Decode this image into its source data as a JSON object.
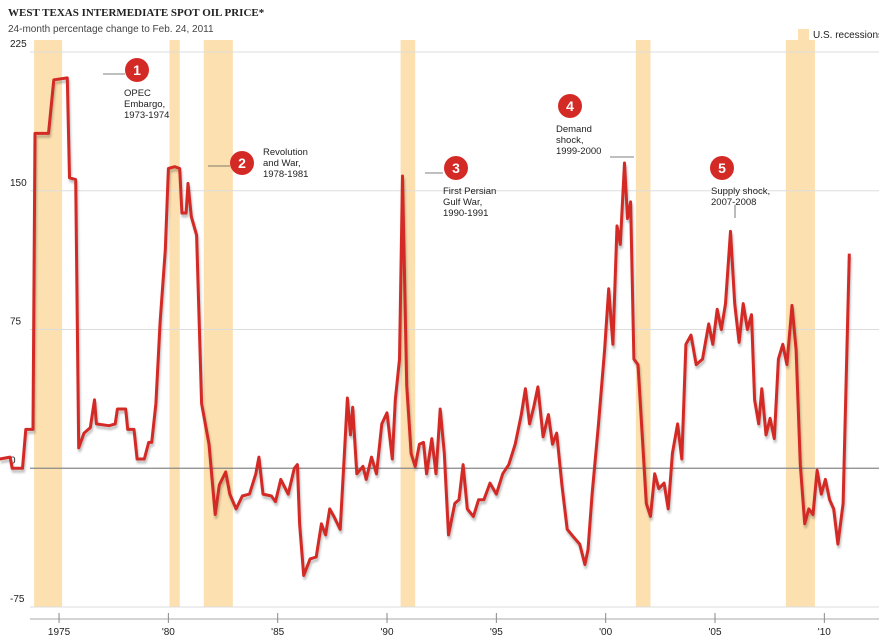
{
  "chart_data": {
    "type": "line",
    "title": "WEST TEXAS INTERMEDIATE SPOT OIL PRICE*",
    "subtitle": "24-month percentage change to Feb. 24, 2011",
    "legend_label": "U.S. recessions",
    "recession_color": "#fde0b0",
    "grid": true,
    "xlim": [
      1972.3,
      2012.5
    ],
    "ylim": [
      -75,
      225
    ],
    "yticks": [
      -75,
      0,
      75,
      150,
      225
    ],
    "xticks": [
      1975,
      {
        "value": 1980,
        "label": "'80"
      },
      {
        "value": 1985,
        "label": "'85"
      },
      {
        "value": 1990,
        "label": "'90"
      },
      {
        "value": 1995,
        "label": "'95"
      },
      {
        "value": 2000,
        "label": "'00"
      },
      {
        "value": 2005,
        "label": "'05"
      },
      {
        "value": 2010,
        "label": "'10"
      }
    ],
    "recessions": [
      [
        1973.86,
        1975.14
      ],
      [
        1980.05,
        1980.52
      ],
      [
        1981.62,
        1982.95
      ],
      [
        1990.62,
        1991.29
      ],
      [
        2001.38,
        2002.05
      ],
      [
        2008.24,
        2009.57
      ]
    ],
    "annotations": [
      {
        "number": "1",
        "lines": [
          "OPEC",
          "Embargo,",
          "1973-1974"
        ]
      },
      {
        "number": "2",
        "lines": [
          "Revolution",
          "and War,",
          "1978-1981"
        ]
      },
      {
        "number": "3",
        "lines": [
          "First Persian",
          "Gulf War,",
          "1990-1991"
        ]
      },
      {
        "number": "4",
        "lines": [
          "Demand",
          "shock,",
          "1999-2000"
        ]
      },
      {
        "number": "5",
        "lines": [
          "Supply shock,",
          "2007-2008"
        ]
      }
    ],
    "series": [
      {
        "color": "#d42a25",
        "x": [
          1972.29,
          1972.76,
          1972.86,
          1973.33,
          1973.48,
          1973.81,
          1973.9,
          1974.52,
          1974.76,
          1975.38,
          1975.48,
          1975.76,
          1975.9,
          1976.14,
          1976.43,
          1976.62,
          1976.71,
          1977.29,
          1977.57,
          1977.67,
          1978.05,
          1978.14,
          1978.43,
          1978.57,
          1978.9,
          1979.1,
          1979.24,
          1979.43,
          1979.62,
          1979.86,
          1980.0,
          1980.29,
          1980.52,
          1980.62,
          1980.81,
          1980.9,
          1981.05,
          1981.29,
          1981.52,
          1981.86,
          1982.14,
          1982.33,
          1982.62,
          1982.81,
          1983.1,
          1983.38,
          1983.71,
          1984.0,
          1984.14,
          1984.33,
          1984.71,
          1984.9,
          1985.14,
          1985.48,
          1985.76,
          1985.9,
          1986.0,
          1986.19,
          1986.48,
          1986.76,
          1987.0,
          1987.19,
          1987.38,
          1987.57,
          1987.86,
          1988.05,
          1988.19,
          1988.33,
          1988.43,
          1988.62,
          1988.9,
          1989.05,
          1989.29,
          1989.52,
          1989.76,
          1990.0,
          1990.24,
          1990.38,
          1990.57,
          1990.71,
          1990.9,
          1991.1,
          1991.29,
          1991.48,
          1991.67,
          1991.81,
          1992.05,
          1992.24,
          1992.43,
          1992.62,
          1992.81,
          1993.1,
          1993.29,
          1993.48,
          1993.67,
          1993.95,
          1994.19,
          1994.43,
          1994.71,
          1995.0,
          1995.29,
          1995.57,
          1995.86,
          1996.14,
          1996.33,
          1996.52,
          1996.71,
          1996.9,
          1997.14,
          1997.38,
          1997.57,
          1997.76,
          1998.0,
          1998.24,
          1998.52,
          1998.81,
          1999.05,
          1999.19,
          1999.38,
          1999.67,
          1999.95,
          2000.14,
          2000.33,
          2000.52,
          2000.67,
          2000.86,
          2001.0,
          2001.14,
          2001.29,
          2001.48,
          2001.67,
          2001.86,
          2002.05,
          2002.24,
          2002.43,
          2002.67,
          2002.86,
          2003.05,
          2003.29,
          2003.48,
          2003.67,
          2003.9,
          2004.14,
          2004.43,
          2004.71,
          2004.9,
          2005.1,
          2005.29,
          2005.48,
          2005.71,
          2005.9,
          2006.1,
          2006.29,
          2006.48,
          2006.67,
          2006.81,
          2007.0,
          2007.14,
          2007.33,
          2007.52,
          2007.71,
          2007.9,
          2008.1,
          2008.29,
          2008.52,
          2008.71,
          2008.9,
          2009.1,
          2009.29,
          2009.48,
          2009.67,
          2009.86,
          2010.05,
          2010.24,
          2010.43,
          2010.62,
          2010.86,
          2011.14
        ],
        "values": [
          5,
          6,
          0,
          0,
          21,
          21,
          181,
          181,
          210,
          211,
          157,
          156,
          11,
          19,
          22,
          37,
          24,
          23,
          24,
          32,
          32,
          21,
          21,
          5,
          5,
          14,
          14,
          35,
          79,
          118,
          162,
          163,
          162,
          138,
          138,
          154,
          136,
          126,
          35,
          13,
          -25,
          -9,
          -2,
          -14,
          -22,
          -15,
          -14,
          -3,
          6,
          -14,
          -15,
          -18,
          -6,
          -14,
          0,
          2,
          -30,
          -58,
          -49,
          -48,
          -30,
          -36,
          -22,
          -26,
          -33,
          8,
          38,
          18,
          33,
          -3,
          1,
          -6,
          6,
          -3,
          24,
          30,
          5,
          37,
          59,
          158,
          45,
          8,
          1,
          13,
          14,
          -3,
          16,
          -3,
          32,
          8,
          -36,
          -19,
          -17,
          2,
          -22,
          -26,
          -17,
          -17,
          -8,
          -14,
          -3,
          2,
          13,
          29,
          43,
          24,
          33,
          44,
          17,
          29,
          13,
          19,
          -9,
          -33,
          -37,
          -41,
          -52,
          -44,
          -14,
          24,
          64,
          97,
          67,
          131,
          121,
          165,
          135,
          144,
          59,
          56,
          18,
          -19,
          -26,
          -3,
          -11,
          -8,
          -22,
          8,
          24,
          5,
          67,
          72,
          56,
          59,
          78,
          67,
          86,
          75,
          89,
          128,
          89,
          68,
          89,
          75,
          83,
          37,
          24,
          43,
          18,
          27,
          16,
          59,
          67,
          56,
          88,
          64,
          2,
          -30,
          -22,
          -25,
          -1,
          -14,
          -6,
          -17,
          -22,
          -41,
          -19,
          116
        ]
      }
    ]
  }
}
